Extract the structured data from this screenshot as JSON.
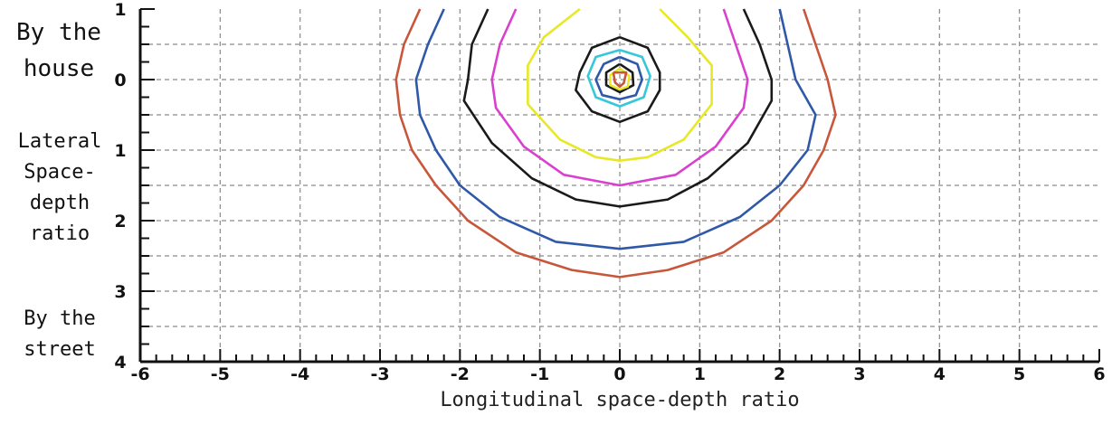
{
  "side_labels": {
    "top": [
      "By the",
      "house"
    ],
    "middle": [
      "Lateral",
      "Space-",
      "depth",
      "ratio"
    ],
    "bottom": [
      "By the",
      "street"
    ]
  },
  "chart_data": {
    "type": "contour",
    "title": "",
    "xlabel": "Longitudinal space-depth ratio",
    "ylabel": "Lateral Space-depth ratio",
    "xlim": [
      -6,
      6
    ],
    "ylim": [
      -1,
      4
    ],
    "y_inverted": true,
    "x_ticks": [
      "-6",
      "-5",
      "-4",
      "-3",
      "-2",
      "-1",
      "0",
      "1",
      "2",
      "3",
      "4",
      "5",
      "6"
    ],
    "y_ticks": [
      {
        "value": -1,
        "label": "1"
      },
      {
        "value": 0,
        "label": "0"
      },
      {
        "value": 1,
        "label": "1"
      },
      {
        "value": 2,
        "label": "2"
      },
      {
        "value": 3,
        "label": "3"
      },
      {
        "value": 4,
        "label": "4"
      }
    ],
    "grid": true,
    "contours": [
      {
        "color": "#c8563a",
        "points": [
          [
            -2.5,
            -1
          ],
          [
            -2.7,
            -0.5
          ],
          [
            -2.8,
            0
          ],
          [
            -2.75,
            0.5
          ],
          [
            -2.6,
            1
          ],
          [
            -2.3,
            1.5
          ],
          [
            -1.9,
            2
          ],
          [
            -1.3,
            2.45
          ],
          [
            -0.6,
            2.7
          ],
          [
            0,
            2.8
          ],
          [
            0.6,
            2.7
          ],
          [
            1.3,
            2.45
          ],
          [
            1.9,
            2
          ],
          [
            2.3,
            1.5
          ],
          [
            2.55,
            1
          ],
          [
            2.7,
            0.5
          ],
          [
            2.6,
            0
          ],
          [
            2.45,
            -0.5
          ],
          [
            2.3,
            -1
          ]
        ]
      },
      {
        "color": "#2f58a8",
        "points": [
          [
            -2.2,
            -1
          ],
          [
            -2.4,
            -0.5
          ],
          [
            -2.55,
            0
          ],
          [
            -2.5,
            0.5
          ],
          [
            -2.3,
            1
          ],
          [
            -2.0,
            1.5
          ],
          [
            -1.5,
            1.95
          ],
          [
            -0.8,
            2.3
          ],
          [
            0,
            2.4
          ],
          [
            0.8,
            2.3
          ],
          [
            1.5,
            1.95
          ],
          [
            2.0,
            1.5
          ],
          [
            2.35,
            1
          ],
          [
            2.45,
            0.5
          ],
          [
            2.2,
            0
          ],
          [
            2.1,
            -0.5
          ],
          [
            2.0,
            -1
          ]
        ]
      },
      {
        "color": "#1a1a1a",
        "points": [
          [
            -1.65,
            -1
          ],
          [
            -1.85,
            -0.5
          ],
          [
            -1.9,
            0
          ],
          [
            -1.95,
            0.3
          ],
          [
            -1.6,
            0.9
          ],
          [
            -1.1,
            1.4
          ],
          [
            -0.55,
            1.7
          ],
          [
            0,
            1.8
          ],
          [
            0.6,
            1.7
          ],
          [
            1.1,
            1.4
          ],
          [
            1.6,
            0.9
          ],
          [
            1.9,
            0.3
          ],
          [
            1.9,
            0
          ],
          [
            1.75,
            -0.5
          ],
          [
            1.55,
            -1
          ]
        ]
      },
      {
        "color": "#d940cf",
        "points": [
          [
            -1.3,
            -1
          ],
          [
            -1.5,
            -0.5
          ],
          [
            -1.6,
            0
          ],
          [
            -1.55,
            0.4
          ],
          [
            -1.2,
            0.95
          ],
          [
            -0.7,
            1.35
          ],
          [
            0,
            1.5
          ],
          [
            0.7,
            1.35
          ],
          [
            1.2,
            0.95
          ],
          [
            1.55,
            0.4
          ],
          [
            1.6,
            0
          ],
          [
            1.45,
            -0.5
          ],
          [
            1.3,
            -1
          ]
        ]
      },
      {
        "color": "#e8e829",
        "points": [
          [
            -0.5,
            -1
          ],
          [
            -0.95,
            -0.6
          ],
          [
            -1.15,
            -0.2
          ],
          [
            -1.15,
            0.35
          ],
          [
            -0.75,
            0.85
          ],
          [
            -0.3,
            1.1
          ],
          [
            0,
            1.15
          ],
          [
            0.35,
            1.1
          ],
          [
            0.8,
            0.85
          ],
          [
            1.15,
            0.35
          ],
          [
            1.15,
            -0.2
          ],
          [
            0.85,
            -0.6
          ],
          [
            0.5,
            -1
          ]
        ]
      },
      {
        "color": "#1a1a1a",
        "points": [
          [
            0,
            -0.6
          ],
          [
            0.35,
            -0.45
          ],
          [
            0.5,
            -0.1
          ],
          [
            0.5,
            0.15
          ],
          [
            0.35,
            0.45
          ],
          [
            0,
            0.6
          ],
          [
            -0.35,
            0.45
          ],
          [
            -0.55,
            0.15
          ],
          [
            -0.5,
            -0.1
          ],
          [
            -0.35,
            -0.45
          ],
          [
            0,
            -0.6
          ]
        ]
      },
      {
        "color": "#35c8d8",
        "points": [
          [
            0,
            -0.42
          ],
          [
            0.28,
            -0.32
          ],
          [
            0.38,
            -0.05
          ],
          [
            0.3,
            0.25
          ],
          [
            0,
            0.38
          ],
          [
            -0.3,
            0.25
          ],
          [
            -0.4,
            -0.05
          ],
          [
            -0.3,
            -0.32
          ],
          [
            0,
            -0.42
          ]
        ]
      },
      {
        "color": "#2f58a8",
        "points": [
          [
            0,
            -0.32
          ],
          [
            0.22,
            -0.22
          ],
          [
            0.28,
            0
          ],
          [
            0.2,
            0.22
          ],
          [
            0,
            0.28
          ],
          [
            -0.22,
            0.22
          ],
          [
            -0.3,
            0
          ],
          [
            -0.2,
            -0.22
          ],
          [
            0,
            -0.32
          ]
        ]
      },
      {
        "color": "#1a1a1a",
        "points": [
          [
            0,
            -0.22
          ],
          [
            0.16,
            -0.1
          ],
          [
            0.17,
            0.08
          ],
          [
            0,
            0.18
          ],
          [
            -0.17,
            0.08
          ],
          [
            -0.17,
            -0.1
          ],
          [
            0,
            -0.22
          ]
        ]
      },
      {
        "color": "#e8e829",
        "points": [
          [
            0,
            -0.16
          ],
          [
            0.12,
            -0.05
          ],
          [
            0.1,
            0.1
          ],
          [
            0,
            0.14
          ],
          [
            -0.12,
            0.08
          ],
          [
            -0.12,
            -0.06
          ],
          [
            0,
            -0.16
          ]
        ]
      },
      {
        "color": "#c8563a",
        "points": [
          [
            -0.08,
            -0.1
          ],
          [
            0.08,
            -0.1
          ],
          [
            0.05,
            0.05
          ],
          [
            0,
            0.1
          ],
          [
            -0.06,
            0.04
          ],
          [
            -0.08,
            -0.1
          ]
        ]
      }
    ]
  }
}
